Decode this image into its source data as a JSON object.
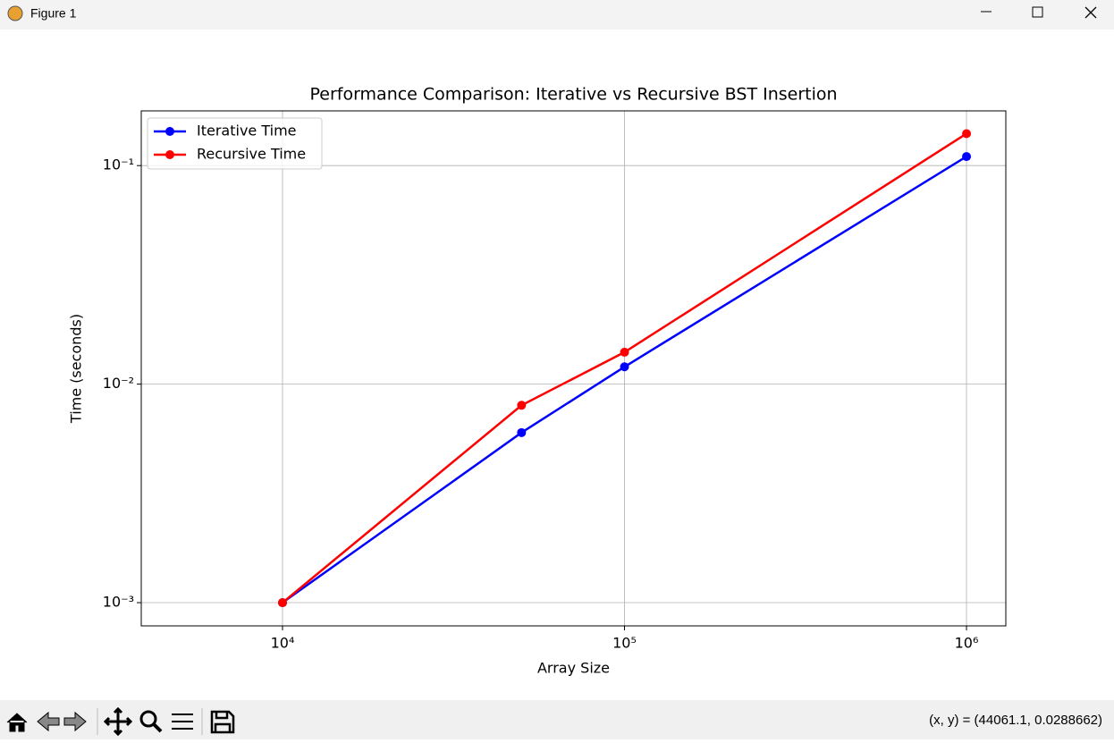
{
  "window": {
    "title": "Figure 1",
    "status": "(x, y) = (44061.1, 0.0288662)"
  },
  "chart_data": {
    "type": "line",
    "title": "Performance Comparison: Iterative vs Recursive BST Insertion",
    "xlabel": "Array Size",
    "ylabel": "Time (seconds)",
    "x": [
      10000,
      50000,
      100000,
      1000000
    ],
    "series": [
      {
        "name": "Iterative Time",
        "color": "#0000ff",
        "values": [
          0.001,
          0.006,
          0.012,
          0.11
        ]
      },
      {
        "name": "Recursive Time",
        "color": "#ff0000",
        "values": [
          0.001,
          0.008,
          0.014,
          0.14
        ]
      }
    ],
    "xscale": "log",
    "yscale": "log",
    "xlim": [
      3864,
      1303000
    ],
    "ylim": [
      0.000783,
      0.178
    ],
    "xticks": [
      {
        "value": 10000,
        "label": "10⁴"
      },
      {
        "value": 100000,
        "label": "10⁵"
      },
      {
        "value": 1000000,
        "label": "10⁶"
      }
    ],
    "yticks": [
      {
        "value": 0.001,
        "label": "10⁻³"
      },
      {
        "value": 0.01,
        "label": "10⁻²"
      },
      {
        "value": 0.1,
        "label": "10⁻¹"
      }
    ],
    "grid": true,
    "legend": "upper left"
  }
}
